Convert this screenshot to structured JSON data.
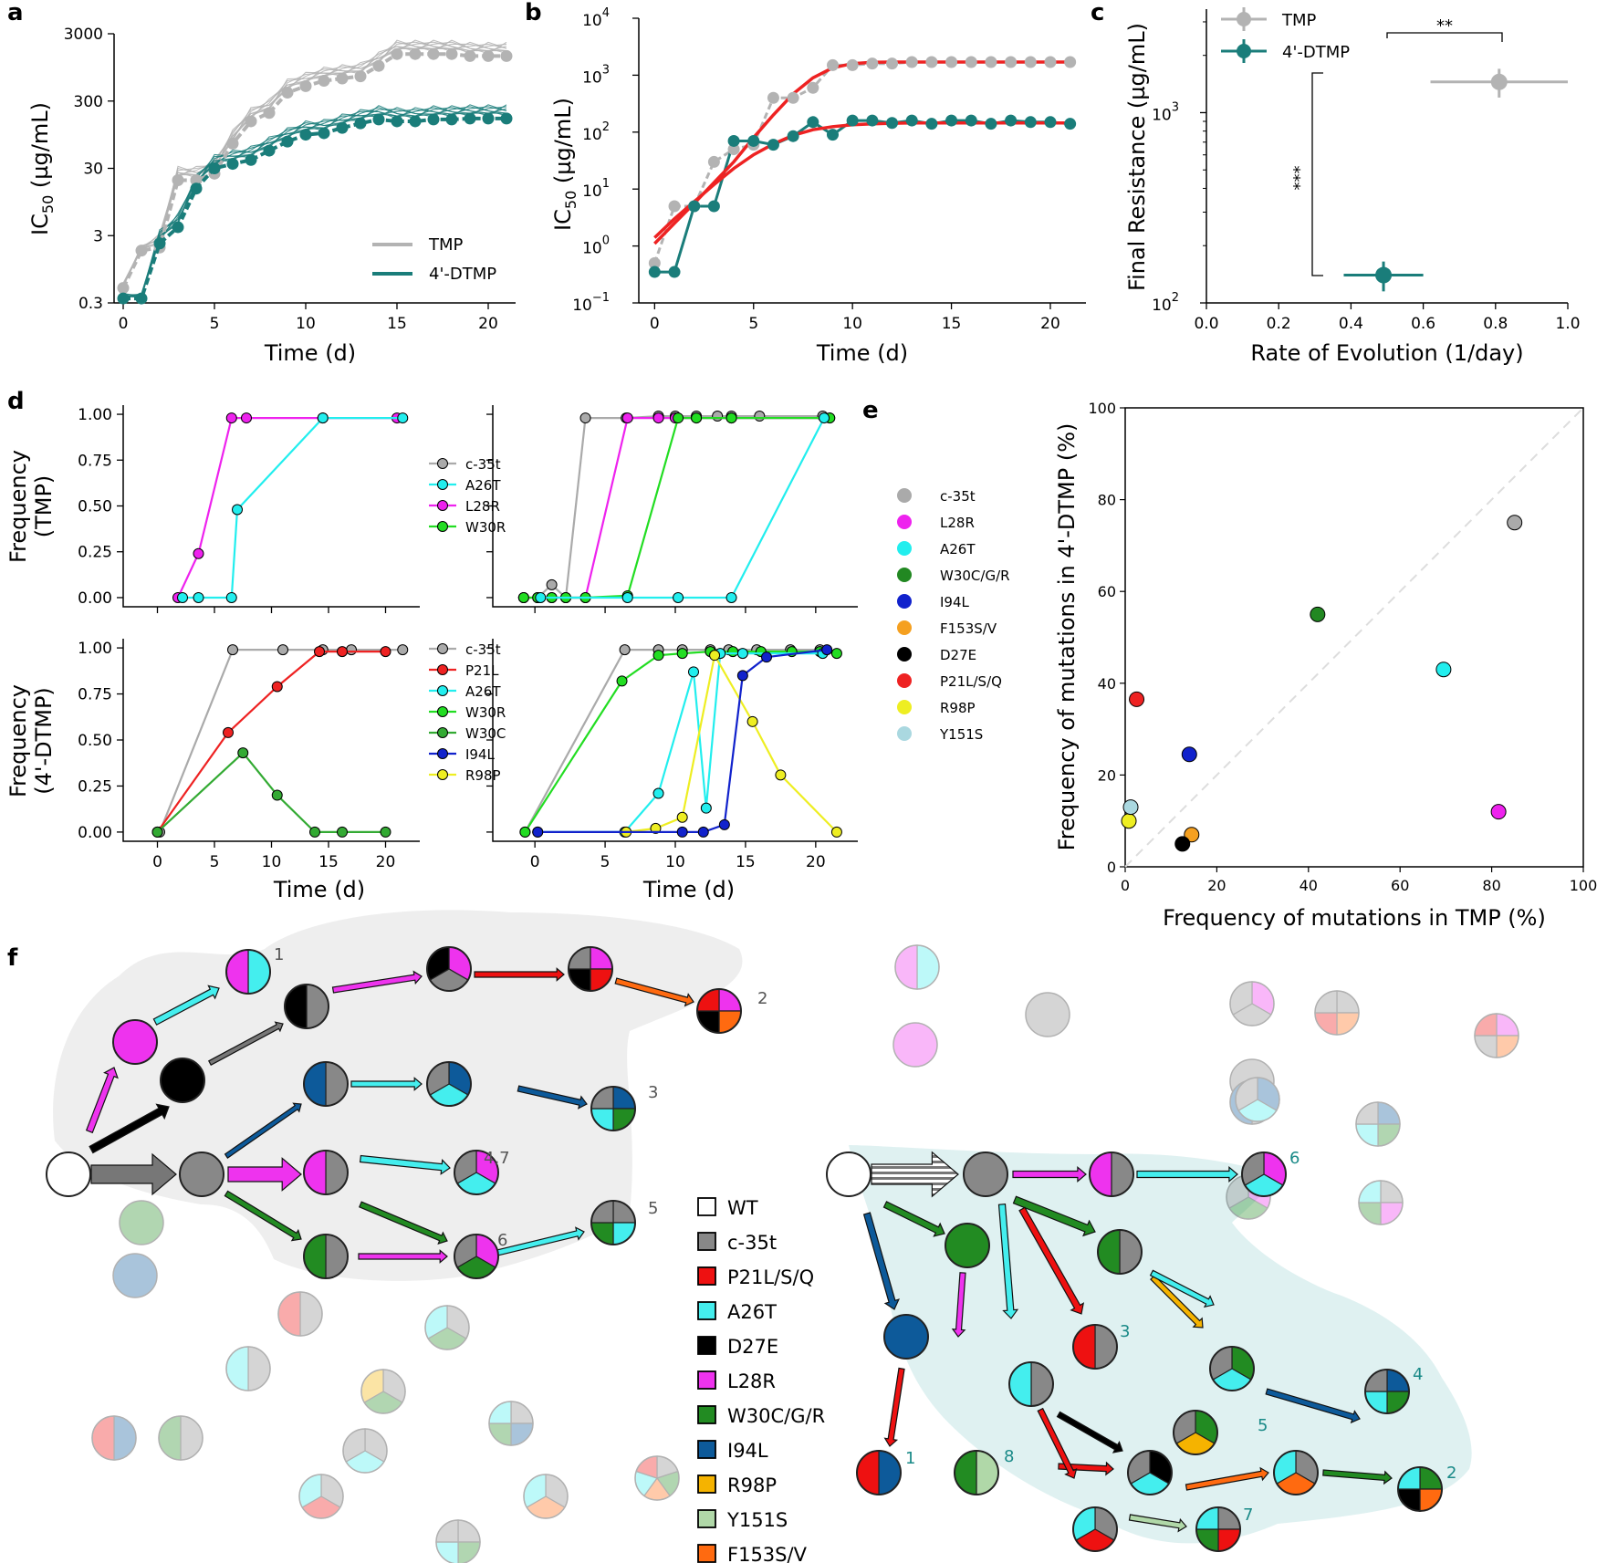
{
  "panel_labels": [
    "a",
    "b",
    "c",
    "d",
    "e",
    "f"
  ],
  "chart_data": [
    {
      "id": "a",
      "type": "line",
      "xlabel": "Time (d)",
      "ylabel": "IC50 (µg/mL)",
      "ylabel_main": "IC",
      "ylabel_sub": "50",
      "ylabel_rest": " (µg/mL)",
      "scale": "log",
      "xlim": [
        -0.5,
        21.5
      ],
      "ylim": [
        0.3,
        3000
      ],
      "xticks": [
        "0",
        "5",
        "10",
        "15",
        "20"
      ],
      "yticks": [
        "0.3",
        "3",
        "30",
        "300",
        "3000"
      ],
      "legend": [
        "TMP",
        "4'-DTMP"
      ],
      "legend_position": "lower-right",
      "colors": {
        "TMP": "#b3b3b3",
        "4'-DTMP": "#1a7d7a"
      },
      "x": [
        0,
        1,
        2,
        3,
        4,
        5,
        6,
        7,
        8,
        9,
        10,
        11,
        12,
        13,
        14,
        15,
        16,
        17,
        18,
        19,
        20,
        21
      ],
      "series": [
        {
          "name": "TMP",
          "values": [
            0.5,
            1.8,
            2,
            20,
            20,
            25,
            70,
            150,
            200,
            400,
            500,
            600,
            650,
            700,
            1000,
            1500,
            1500,
            1500,
            1500,
            1400,
            1400,
            1400
          ]
        },
        {
          "name": "4'-DTMP",
          "values": [
            0.35,
            0.35,
            2.3,
            4,
            15,
            30,
            35,
            40,
            55,
            75,
            95,
            100,
            120,
            140,
            160,
            150,
            150,
            160,
            160,
            165,
            165,
            165
          ]
        }
      ]
    },
    {
      "id": "b",
      "type": "scatter",
      "xlabel": "Time (d)",
      "ylabel": "IC50 (µg/mL)",
      "ylabel_main": "IC",
      "ylabel_sub": "50",
      "ylabel_rest": " (µg/mL)",
      "scale": "log",
      "xlim": [
        -0.8,
        21.8
      ],
      "ylim": [
        0.1,
        10000
      ],
      "xticks": [
        "0",
        "5",
        "10",
        "15",
        "20"
      ],
      "ytick_base": "10",
      "ytick_exps": [
        "−1",
        "0",
        "1",
        "2",
        "3",
        "4"
      ],
      "x": [
        0,
        1,
        2,
        3,
        4,
        5,
        6,
        7,
        8,
        9,
        10,
        11,
        12,
        13,
        14,
        15,
        16,
        17,
        18,
        19,
        20,
        21
      ],
      "series": [
        {
          "name": "TMP",
          "values": [
            0.5,
            5,
            5,
            30,
            50,
            60,
            400,
            400,
            600,
            1500,
            1500,
            1600,
            1600,
            1700,
            1700,
            1700,
            1700,
            1700,
            1700,
            1700,
            1700,
            1700
          ]
        },
        {
          "name": "4'-DTMP",
          "values": [
            0.35,
            0.35,
            5,
            5,
            70,
            70,
            60,
            85,
            150,
            90,
            160,
            160,
            145,
            160,
            140,
            160,
            160,
            140,
            160,
            150,
            150,
            140
          ]
        },
        {
          "name": "TMP fit",
          "values": [
            1.1,
            2.5,
            5.6,
            13,
            30,
            80,
            200,
            470,
            900,
            1350,
            1600,
            1680,
            1700,
            1700,
            1700,
            1700,
            1700,
            1700,
            1700,
            1700,
            1700,
            1700
          ]
        },
        {
          "name": "4'-DTMP fit",
          "values": [
            1.4,
            3,
            6,
            12,
            23,
            40,
            62,
            88,
            110,
            125,
            135,
            140,
            143,
            145,
            145,
            145,
            145,
            145,
            145,
            145,
            145,
            145
          ]
        }
      ],
      "colors": {
        "TMP": "#b3b3b3",
        "4'-DTMP": "#1a7d7a",
        "fit": "#ee2222"
      }
    },
    {
      "id": "c",
      "type": "scatter",
      "xlabel": "Rate of Evolution (1/day)",
      "ylabel": "Final Resistance (µg/mL)",
      "scale": "log",
      "xlim": [
        0,
        1
      ],
      "ylim": [
        100,
        3500
      ],
      "xticks": [
        "0.0",
        "0.2",
        "0.4",
        "0.6",
        "0.8",
        "1.0"
      ],
      "ytick_base": "10",
      "ytick_exps": [
        "2",
        "3"
      ],
      "legend": [
        "TMP",
        "4'-DTMP"
      ],
      "legend_position": "top-left",
      "series": [
        {
          "name": "TMP",
          "x": 0.81,
          "y": 1450,
          "xerr": [
            0.62,
            1.0
          ],
          "yerr": [
            1200,
            1700
          ]
        },
        {
          "name": "4'-DTMP",
          "x": 0.49,
          "y": 140,
          "xerr": [
            0.38,
            0.6
          ],
          "yerr": [
            115,
            165
          ]
        }
      ],
      "annotations": [
        "**",
        "***"
      ]
    },
    {
      "id": "d1",
      "type": "line",
      "ylabel": "Frequency (TMP)",
      "ylabel_lines": [
        "Frequency",
        "(TMP)"
      ],
      "xlim": [
        -3,
        23
      ],
      "ylim": [
        -0.05,
        1.05
      ],
      "yticks": [
        "0.00",
        "0.25",
        "0.50",
        "0.75",
        "1.00"
      ],
      "legend": [
        "c-35t",
        "A26T",
        "L28R",
        "W30R"
      ],
      "series": [
        {
          "name": "L28R",
          "color": "#ee22ee",
          "x": [
            1.8,
            3.6,
            6.5,
            7.8,
            14.5,
            21
          ],
          "values": [
            0,
            0.24,
            0.98,
            0.98,
            0.98,
            0.98
          ]
        },
        {
          "name": "A26T",
          "color": "#22eeee",
          "x": [
            2.2,
            3.6,
            6.5,
            7.0,
            14.5,
            21.5
          ],
          "values": [
            0,
            0,
            0,
            0.48,
            0.98,
            0.98
          ]
        }
      ]
    },
    {
      "id": "d2",
      "type": "line",
      "xlim": [
        -3,
        23
      ],
      "ylim": [
        -0.05,
        1.05
      ],
      "series": [
        {
          "name": "c-35t",
          "color": "#aaaaaa",
          "x": [
            -0.8,
            0.2,
            1.2,
            2.2,
            3.6,
            6.5,
            8.8,
            10,
            11.5,
            13,
            14,
            16,
            20.5
          ],
          "values": [
            0,
            0,
            0.07,
            0,
            0.98,
            0.98,
            0.99,
            0.99,
            0.99,
            0.99,
            0.99,
            0.99,
            0.99
          ]
        },
        {
          "name": "L28R",
          "color": "#ee22ee",
          "x": [
            -0.8,
            0.2,
            1.2,
            2.2,
            3.6,
            6.6,
            8.8,
            10,
            11.5,
            14,
            21
          ],
          "values": [
            0,
            0,
            0,
            0,
            0,
            0.98,
            0.98,
            0.98,
            0.98,
            0.98,
            0.98
          ]
        },
        {
          "name": "W30R",
          "color": "#22dd22",
          "x": [
            -0.8,
            0.2,
            1.2,
            2.2,
            3.6,
            6.6,
            10.2,
            11.5,
            14,
            21
          ],
          "values": [
            0,
            0,
            0,
            0,
            0,
            0.01,
            0.98,
            0.98,
            0.98,
            0.98
          ]
        },
        {
          "name": "A26T",
          "color": "#22eeee",
          "x": [
            0.4,
            6.6,
            10.2,
            14,
            20.6
          ],
          "values": [
            0,
            0,
            0,
            0,
            0.98
          ]
        }
      ]
    },
    {
      "id": "d3",
      "type": "line",
      "ylabel": "Frequency (4'-DTMP)",
      "ylabel_lines": [
        "Frequency",
        "(4'-DTMP)"
      ],
      "xlabel": "Time (d)",
      "xlim": [
        -3,
        23
      ],
      "ylim": [
        -0.05,
        1.05
      ],
      "xticks": [
        "0",
        "5",
        "10",
        "15",
        "20"
      ],
      "yticks": [
        "0.00",
        "0.25",
        "0.50",
        "0.75",
        "1.00"
      ],
      "legend": [
        "c-35t",
        "P21L",
        "A26T",
        "W30R",
        "W30C",
        "I94L",
        "R98P"
      ],
      "series": [
        {
          "name": "c-35t",
          "color": "#aaaaaa",
          "x": [
            0.2,
            6.6,
            11,
            14.5,
            17,
            21.5
          ],
          "values": [
            0,
            0.99,
            0.99,
            0.99,
            0.99,
            0.99
          ]
        },
        {
          "name": "P21L",
          "color": "#ee2222",
          "x": [
            0,
            6.2,
            10.5,
            14.2,
            16.2,
            20
          ],
          "values": [
            0,
            0.54,
            0.79,
            0.98,
            0.98,
            0.98
          ]
        },
        {
          "name": "W30C",
          "color": "#33aa33",
          "x": [
            0,
            7.5,
            10.5,
            13.8,
            16.2,
            20
          ],
          "values": [
            0,
            0.43,
            0.2,
            0,
            0,
            0
          ]
        }
      ]
    },
    {
      "id": "d4",
      "type": "line",
      "xlabel": "Time (d)",
      "xlim": [
        -3,
        23
      ],
      "ylim": [
        -0.05,
        1.05
      ],
      "xticks": [
        "0",
        "5",
        "10",
        "15",
        "20"
      ],
      "series": [
        {
          "name": "c-35t",
          "color": "#aaaaaa",
          "x": [
            -0.7,
            6.4,
            8.8,
            10.5,
            12.5,
            13.8,
            15.8,
            18.2,
            20.3
          ],
          "values": [
            0,
            0.99,
            0.99,
            0.99,
            0.99,
            0.99,
            0.99,
            0.99,
            0.99
          ]
        },
        {
          "name": "W30R",
          "color": "#22dd22",
          "x": [
            -0.7,
            6.2,
            8.8,
            10.5,
            12.5,
            14.1,
            16.1,
            18.3,
            20.3,
            21.5
          ],
          "values": [
            0,
            0.82,
            0.96,
            0.97,
            0.98,
            0.98,
            0.98,
            0.98,
            0.98,
            0.97
          ]
        },
        {
          "name": "A26T",
          "color": "#22eeee",
          "x": [
            0.2,
            6.4,
            8.8,
            11.3,
            12.2,
            13.2,
            14.8,
            20.5
          ],
          "values": [
            0,
            0,
            0.21,
            0.87,
            0.13,
            0.97,
            0.97,
            0.97
          ]
        },
        {
          "name": "R98P",
          "color": "#eeee22",
          "x": [
            6.5,
            8.6,
            10.5,
            12.8,
            15.5,
            17.5,
            21.5
          ],
          "values": [
            0,
            0.02,
            0.08,
            0.96,
            0.6,
            0.31,
            0
          ]
        },
        {
          "name": "I94L",
          "color": "#1122cc",
          "x": [
            0.2,
            10.5,
            12,
            13.5,
            14.8,
            16.5,
            20.8
          ],
          "values": [
            0,
            0,
            0,
            0.04,
            0.85,
            0.95,
            0.99
          ]
        }
      ]
    },
    {
      "id": "e",
      "type": "scatter",
      "xlabel": "Frequency of mutations in TMP (%)",
      "ylabel": "Frequency of mutations in 4'-DTMP (%)",
      "xlim": [
        0,
        100
      ],
      "ylim": [
        0,
        100
      ],
      "xticks": [
        "0",
        "20",
        "40",
        "60",
        "80",
        "100"
      ],
      "yticks": [
        "0",
        "20",
        "40",
        "60",
        "80",
        "100"
      ],
      "diagonal": true,
      "points": [
        {
          "name": "c-35t",
          "color": "#aaaaaa",
          "x": 85,
          "y": 75
        },
        {
          "name": "L28R",
          "color": "#ee22ee",
          "x": 81.5,
          "y": 12
        },
        {
          "name": "A26T",
          "color": "#22eeee",
          "x": 69.5,
          "y": 43
        },
        {
          "name": "W30C/G/R",
          "color": "#228822",
          "x": 42,
          "y": 55
        },
        {
          "name": "I94L",
          "color": "#1122cc",
          "x": 14,
          "y": 24.5
        },
        {
          "name": "F153S/V",
          "color": "#f5a020",
          "x": 14.5,
          "y": 7
        },
        {
          "name": "D27E",
          "color": "#000000",
          "x": 12.5,
          "y": 5
        },
        {
          "name": "P21L/S/Q",
          "color": "#ee2222",
          "x": 2.5,
          "y": 36.5
        },
        {
          "name": "R98P",
          "color": "#eeee22",
          "x": 0.8,
          "y": 10
        },
        {
          "name": "Y151S",
          "color": "#aad8e0",
          "x": 1.2,
          "y": 13
        }
      ]
    }
  ],
  "f": {
    "legend": [
      {
        "label": "WT",
        "color": "#ffffff"
      },
      {
        "label": "c-35t",
        "color": "#888888"
      },
      {
        "label": "P21L/S/Q",
        "color": "#ee1111"
      },
      {
        "label": "A26T",
        "color": "#44eeee"
      },
      {
        "label": "D27E",
        "color": "#000000"
      },
      {
        "label": "L28R",
        "color": "#ee33ee"
      },
      {
        "label": "W30C/G/R",
        "color": "#228b22"
      },
      {
        "label": "I94L",
        "color": "#0d5a9a"
      },
      {
        "label": "R98P",
        "color": "#f5b300"
      },
      {
        "label": "Y151S",
        "color": "#b0d8a8"
      },
      {
        "label": "F153S/V",
        "color": "#ff6a10"
      }
    ],
    "tmp_numbers": [
      "1",
      "2",
      "3",
      "4,7",
      "5",
      "6"
    ],
    "dtmp_numbers": [
      "6",
      "3",
      "4",
      "5",
      "1",
      "8",
      "2",
      "7"
    ]
  }
}
